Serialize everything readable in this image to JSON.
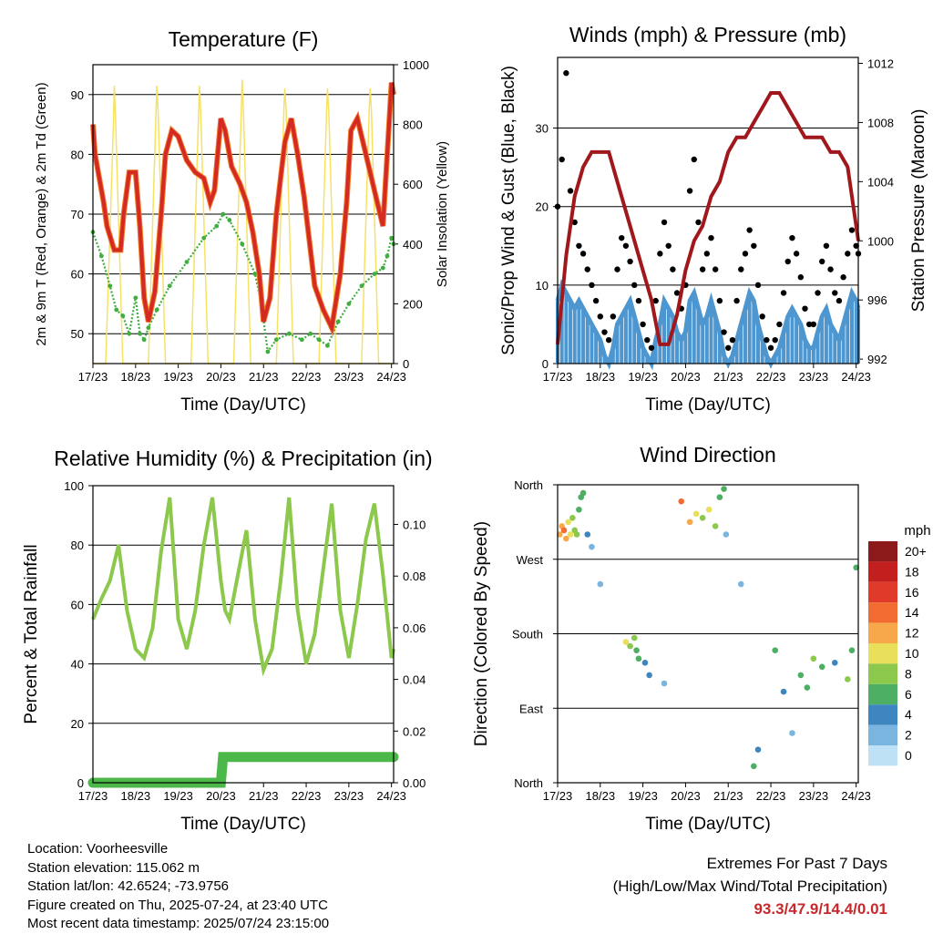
{
  "days": [
    "17/23",
    "18/23",
    "19/23",
    "20/23",
    "21/23",
    "22/23",
    "23/23",
    "24/23"
  ],
  "chart_data": [
    {
      "type": "line",
      "title": "Temperature (F)",
      "xlabel": "Time (Day/UTC)",
      "ylabel": "2m & 9m T (Red, Orange) & 2m Td (Green)",
      "y2label": "Solar Insolation (Yellow)",
      "xticks": [
        "17/23",
        "18/23",
        "19/23",
        "20/23",
        "21/23",
        "22/23",
        "23/23",
        "24/23"
      ],
      "ylim": [
        45,
        95
      ],
      "yticks": [
        50,
        60,
        70,
        80,
        90
      ],
      "y2lim": [
        0,
        1000
      ],
      "y2ticks": [
        0,
        200,
        400,
        600,
        800,
        1000
      ],
      "grid": true,
      "colors": {
        "t2m": "#d42a24",
        "t9m": "#f07a2a",
        "td": "#3fae3f",
        "solar": "#f7e163"
      },
      "series": [
        {
          "key": "t2m",
          "x": [
            0,
            0.05,
            0.15,
            0.25,
            0.33,
            0.5,
            0.65,
            0.72,
            0.85,
            1,
            1.1,
            1.2,
            1.3,
            1.45,
            1.6,
            1.7,
            1.85,
            2,
            2.2,
            2.4,
            2.6,
            2.75,
            2.85,
            3,
            3.1,
            3.25,
            3.45,
            3.6,
            3.75,
            3.9,
            4,
            4.15,
            4.3,
            4.5,
            4.65,
            4.8,
            4.95,
            5.05,
            5.2,
            5.4,
            5.6,
            5.8,
            5.95,
            6.05,
            6.2,
            6.4,
            6.6,
            6.8,
            6.9,
            7,
            7.05
          ],
          "y": [
            85,
            80,
            76,
            72,
            68,
            64,
            64,
            70,
            77,
            77,
            68,
            56,
            52,
            57,
            70,
            80,
            84,
            83,
            79,
            77,
            76,
            72,
            74,
            86,
            84,
            78,
            75,
            72,
            67,
            60,
            52,
            56,
            70,
            82,
            86,
            80,
            73,
            67,
            58,
            54,
            51,
            60,
            72,
            84,
            86,
            80,
            74,
            68,
            80,
            92,
            90
          ]
        },
        {
          "key": "td",
          "x": [
            0,
            0.2,
            0.4,
            0.55,
            0.7,
            0.85,
            1,
            1.1,
            1.2,
            1.3,
            1.5,
            1.8,
            2.2,
            2.6,
            2.9,
            3.05,
            3.2,
            3.5,
            3.8,
            3.95,
            4.1,
            4.3,
            4.6,
            4.9,
            5.1,
            5.3,
            5.5,
            5.75,
            6,
            6.3,
            6.6,
            6.8,
            6.9,
            7,
            7.05
          ],
          "y": [
            67,
            63,
            58,
            54,
            53,
            50,
            56,
            50,
            49,
            51,
            54,
            58,
            62,
            66,
            68,
            70,
            69,
            65,
            60,
            55,
            47,
            49,
            50,
            49,
            50,
            49,
            48,
            52,
            55,
            58,
            60,
            61,
            63,
            66,
            65
          ]
        },
        {
          "key": "solar",
          "x": [
            0,
            0.3,
            0.48,
            0.5,
            0.53,
            0.7,
            1.3,
            1.48,
            1.5,
            1.53,
            1.7,
            2.3,
            2.48,
            2.5,
            2.53,
            2.7,
            3.3,
            3.48,
            3.5,
            3.53,
            3.7,
            4.3,
            4.48,
            4.5,
            4.53,
            4.7,
            5.3,
            5.48,
            5.5,
            5.53,
            5.7,
            6.3,
            6.48,
            6.5,
            6.53,
            6.7,
            7.05
          ],
          "y": [
            0,
            0,
            800,
            930,
            820,
            0,
            0,
            850,
            930,
            840,
            0,
            0,
            850,
            930,
            830,
            0,
            0,
            850,
            950,
            840,
            0,
            0,
            860,
            920,
            850,
            0,
            0,
            850,
            920,
            840,
            0,
            0,
            860,
            920,
            840,
            0,
            0
          ]
        }
      ]
    },
    {
      "type": "scatter",
      "title": "Winds (mph) & Pressure (mb)",
      "xlabel": "Time (Day/UTC)",
      "ylabel": "Sonic/Prop Wind & Gust (Blue, Black)",
      "y2label": "Station Pressure (Maroon)",
      "xticks": [
        "17/23",
        "18/23",
        "19/23",
        "20/23",
        "21/23",
        "22/23",
        "23/23",
        "24/23"
      ],
      "ylim": [
        0,
        39
      ],
      "yticks": [
        0,
        10,
        20,
        30
      ],
      "y2lim": [
        991.7,
        1012.4
      ],
      "y2ticks": [
        992,
        996,
        1000,
        1004,
        1008,
        1012
      ],
      "grid": true,
      "colors": {
        "wind": "#4e96cf",
        "gust": "#000000",
        "pressure": "#a0181c"
      },
      "series": [
        {
          "key": "wind",
          "x": [
            0,
            0.1,
            0.2,
            0.3,
            0.4,
            0.5,
            0.6,
            0.7,
            0.8,
            0.9,
            1,
            1.1,
            1.2,
            1.3,
            1.4,
            1.5,
            1.6,
            1.7,
            1.8,
            1.9,
            2,
            2.1,
            2.2,
            2.3,
            2.4,
            2.5,
            2.6,
            2.7,
            2.8,
            2.9,
            3,
            3.1,
            3.2,
            3.3,
            3.4,
            3.5,
            3.6,
            3.7,
            3.8,
            3.9,
            4,
            4.1,
            4.2,
            4.3,
            4.4,
            4.5,
            4.6,
            4.7,
            4.8,
            4.9,
            5,
            5.1,
            5.2,
            5.3,
            5.4,
            5.5,
            5.6,
            5.7,
            5.8,
            5.9,
            6,
            6.1,
            6.2,
            6.3,
            6.4,
            6.5,
            6.6,
            6.7,
            6.8,
            6.9,
            7,
            7.05
          ],
          "y": [
            8,
            10,
            9,
            8,
            7,
            8,
            7,
            6,
            5,
            4,
            3,
            1,
            0,
            2,
            5,
            6,
            7,
            8,
            6,
            4,
            2,
            1,
            0,
            3,
            5,
            8,
            7,
            6,
            4,
            3,
            4,
            8,
            9,
            7,
            5,
            6,
            8,
            6,
            4,
            1,
            0,
            1,
            3,
            5,
            7,
            9,
            8,
            5,
            3,
            1,
            0,
            1,
            2,
            4,
            6,
            7,
            6,
            5,
            3,
            2,
            2,
            4,
            6,
            7,
            5,
            4,
            3,
            5,
            7,
            9,
            8,
            7
          ]
        },
        {
          "key": "gust",
          "x": [
            0,
            0.1,
            0.2,
            0.3,
            0.4,
            0.5,
            0.6,
            0.7,
            0.8,
            0.9,
            1,
            1.1,
            1.2,
            1.3,
            1.4,
            1.5,
            1.6,
            1.7,
            1.8,
            1.9,
            2,
            2.1,
            2.2,
            2.3,
            2.4,
            2.5,
            2.6,
            2.7,
            2.8,
            2.9,
            3,
            3.1,
            3.2,
            3.3,
            3.4,
            3.5,
            3.6,
            3.7,
            3.8,
            3.9,
            4,
            4.1,
            4.2,
            4.3,
            4.4,
            4.5,
            4.6,
            4.7,
            4.8,
            4.9,
            5,
            5.1,
            5.2,
            5.3,
            5.4,
            5.5,
            5.6,
            5.7,
            5.8,
            5.9,
            6,
            6.1,
            6.2,
            6.3,
            6.4,
            6.5,
            6.6,
            6.7,
            6.8,
            6.9,
            7,
            7.05
          ],
          "y": [
            20,
            26,
            37,
            22,
            18,
            15,
            14,
            12,
            10,
            8,
            6,
            4,
            3,
            6,
            12,
            16,
            15,
            13,
            10,
            8,
            5,
            3,
            2,
            8,
            14,
            18,
            15,
            12,
            9,
            7,
            10,
            22,
            26,
            18,
            12,
            14,
            16,
            12,
            8,
            4,
            2,
            3,
            8,
            12,
            14,
            17,
            15,
            10,
            6,
            3,
            2,
            3,
            5,
            9,
            13,
            16,
            14,
            11,
            7,
            5,
            5,
            9,
            13,
            15,
            12,
            9,
            8,
            11,
            14,
            17,
            15,
            14
          ]
        },
        {
          "key": "pressure",
          "x": [
            0,
            0.1,
            0.2,
            0.4,
            0.6,
            0.8,
            1,
            1.2,
            1.4,
            1.6,
            1.8,
            2,
            2.2,
            2.4,
            2.6,
            2.8,
            3,
            3.2,
            3.4,
            3.6,
            3.8,
            4,
            4.2,
            4.4,
            4.6,
            4.8,
            5,
            5.2,
            5.4,
            5.6,
            5.8,
            6,
            6.2,
            6.4,
            6.6,
            6.8,
            6.9,
            7,
            7.05
          ],
          "y": [
            993,
            996,
            999,
            1003,
            1005,
            1006,
            1006,
            1006,
            1004,
            1002,
            1000,
            998,
            996,
            993,
            993,
            995,
            998,
            1000,
            1001,
            1003,
            1004,
            1006,
            1007,
            1007,
            1008,
            1009,
            1010,
            1010,
            1009,
            1008,
            1007,
            1007,
            1007,
            1006,
            1006,
            1005,
            1003,
            1001,
            1000
          ]
        }
      ]
    },
    {
      "type": "line",
      "title": "Relative Humidity (%) & Precipitation (in)",
      "xlabel": "Time (Day/UTC)",
      "ylabel": "Percent & Total Rainfall",
      "xticks": [
        "17/23",
        "18/23",
        "19/23",
        "20/23",
        "21/23",
        "22/23",
        "23/23",
        "24/23"
      ],
      "ylim": [
        0,
        100
      ],
      "yticks": [
        0,
        20,
        40,
        60,
        80,
        100
      ],
      "y2lim": [
        0,
        0.115
      ],
      "y2ticks": [
        0,
        0.02,
        0.04,
        0.06,
        0.08,
        0.1
      ],
      "y2tick_labels": [
        "0.00",
        "0.02",
        "0.04",
        "0.06",
        "0.08",
        "0.10"
      ],
      "grid": true,
      "colors": {
        "rh": "#8cc84b",
        "rain": "#4cb84a"
      },
      "series": [
        {
          "key": "rh",
          "x": [
            0,
            0.2,
            0.4,
            0.6,
            0.8,
            1,
            1.2,
            1.4,
            1.6,
            1.8,
            2,
            2.2,
            2.4,
            2.6,
            2.8,
            3,
            3.1,
            3.2,
            3.4,
            3.6,
            3.8,
            4,
            4.2,
            4.4,
            4.6,
            4.8,
            5,
            5.2,
            5.4,
            5.6,
            5.8,
            6,
            6.2,
            6.4,
            6.6,
            6.8,
            7,
            7.05
          ],
          "y": [
            55,
            62,
            68,
            80,
            58,
            45,
            42,
            52,
            78,
            96,
            55,
            45,
            58,
            80,
            96,
            68,
            58,
            55,
            70,
            85,
            55,
            38,
            45,
            68,
            96,
            58,
            40,
            50,
            72,
            94,
            58,
            42,
            60,
            82,
            94,
            70,
            42,
            45
          ]
        },
        {
          "key": "rain",
          "x": [
            0,
            1.5,
            3,
            3.05,
            4.5,
            6,
            7.05
          ],
          "y": [
            0,
            0,
            0,
            0.01,
            0.01,
            0.01,
            0.01
          ]
        }
      ]
    },
    {
      "type": "scatter",
      "title": "Wind Direction",
      "xlabel": "Time (Day/UTC)",
      "ylabel": "Direction (Colored By Speed)",
      "xticks": [
        "17/23",
        "18/23",
        "19/23",
        "20/23",
        "21/23",
        "22/23",
        "23/23",
        "24/23"
      ],
      "ylim": [
        0,
        360
      ],
      "yticks": [
        0,
        90,
        180,
        270,
        360
      ],
      "ytick_labels": [
        "North",
        "East",
        "South",
        "West",
        "North"
      ],
      "grid": true,
      "legend_title": "mph",
      "legend_labels": [
        "20+",
        "18",
        "16",
        "14",
        "12",
        "10",
        "8",
        "6",
        "4",
        "2",
        "0"
      ],
      "legend_colors": [
        "#8c1a1a",
        "#c41f1f",
        "#e03a2a",
        "#f26b30",
        "#f7a84a",
        "#e9df5a",
        "#8cc84b",
        "#4caf63",
        "#3d86c0",
        "#7ab5df",
        "#bfe1f5"
      ],
      "legend_placement": "right",
      "series": [
        {
          "name": "",
          "x": [
            0.05,
            0.1,
            0.15,
            0.2,
            0.25,
            0.3,
            0.35,
            0.4,
            0.45,
            0.5,
            0.55,
            0.6,
            0.7,
            0.8,
            1.0,
            1.6,
            1.7,
            1.8,
            1.85,
            1.9,
            2.05,
            2.15,
            2.5,
            2.9,
            3.1,
            3.25,
            3.4,
            3.55,
            3.7,
            3.8,
            3.9,
            3.95,
            4.3,
            4.6,
            4.7,
            5.1,
            5.3,
            5.5,
            5.7,
            5.85,
            6.0,
            6.2,
            6.5,
            6.8,
            6.9,
            7.0
          ],
          "y": [
            300,
            310,
            305,
            295,
            315,
            300,
            320,
            305,
            300,
            330,
            345,
            350,
            300,
            285,
            240,
            170,
            165,
            175,
            160,
            150,
            145,
            130,
            120,
            340,
            315,
            325,
            320,
            330,
            310,
            345,
            355,
            300,
            240,
            20,
            40,
            160,
            110,
            60,
            130,
            115,
            150,
            140,
            145,
            125,
            160,
            260
          ],
          "speed": [
            12,
            13,
            14,
            12,
            11,
            10,
            9,
            9,
            8,
            7,
            6,
            7,
            5,
            3,
            2,
            10,
            9,
            8,
            7,
            6,
            5,
            4,
            3,
            14,
            12,
            10,
            9,
            11,
            8,
            7,
            6,
            3,
            2,
            6,
            5,
            7,
            4,
            3,
            6,
            7,
            8,
            6,
            5,
            8,
            7,
            6
          ]
        }
      ]
    }
  ],
  "footer": {
    "location": "Location: Voorheesville",
    "elevation": "Station elevation: 115.062 m",
    "latlon": "Station lat/lon: 42.6524; -73.9756",
    "created": "Figure created on Thu, 2025-07-24, at 23:40 UTC",
    "recent": "Most recent data timestamp: 2025/07/24 23:15:00",
    "extremes_title": "Extremes For Past 7 Days",
    "extremes_sub": "(High/Low/Max Wind/Total Precipitation)",
    "extremes_values": "93.3/47.9/14.4/0.01"
  }
}
